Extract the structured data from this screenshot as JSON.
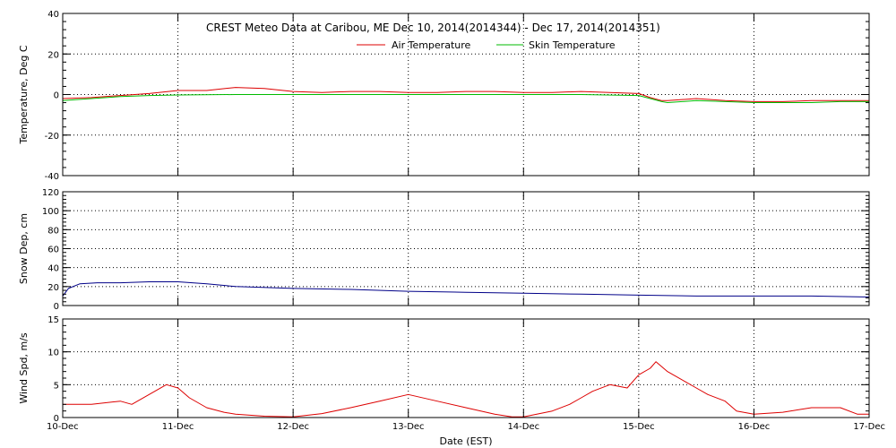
{
  "chart_data": {
    "type": "line",
    "title": "CREST Meteo Data at Caribou, ME   Dec 10, 2014(2014344) - Dec 17, 2014(2014351)",
    "xlabel": "Date (EST)",
    "x_ticks": [
      "10-Dec",
      "11-Dec",
      "12-Dec",
      "13-Dec",
      "14-Dec",
      "15-Dec",
      "16-Dec",
      "17-Dec"
    ],
    "x_range": [
      0,
      7
    ],
    "grid": true,
    "colors": {
      "air": "#dd0000",
      "skin": "#00bb00",
      "snow": "#000088",
      "wind": "#dd0000"
    },
    "panels": [
      {
        "id": "temperature",
        "ylabel": "Temperature, Deg C",
        "ylim": [
          -40,
          40
        ],
        "y_ticks": [
          -40,
          -20,
          0,
          20,
          40
        ],
        "legend_position": "top-center",
        "series": [
          {
            "name": "Air Temperature",
            "color_key": "air",
            "x": [
              0,
              0.25,
              0.5,
              0.75,
              1.0,
              1.25,
              1.5,
              1.75,
              2.0,
              2.25,
              2.5,
              2.75,
              3.0,
              3.25,
              3.5,
              3.75,
              4.0,
              4.25,
              4.5,
              4.75,
              5.0,
              5.1,
              5.2,
              5.25,
              5.5,
              5.75,
              6.0,
              6.25,
              6.5,
              6.75,
              7.0
            ],
            "y": [
              -2,
              -1.5,
              -0.5,
              0.5,
              2,
              2,
              3.5,
              3,
              1.5,
              1,
              1.5,
              1.5,
              1,
              1,
              1.5,
              1.5,
              1,
              1,
              1.5,
              1,
              0.5,
              -1.5,
              -3,
              -3,
              -2,
              -3,
              -3.5,
              -3.5,
              -3,
              -3,
              -3
            ]
          },
          {
            "name": "Skin Temperature",
            "color_key": "skin",
            "x": [
              0,
              0.25,
              0.5,
              0.75,
              1.0,
              1.5,
              2.0,
              2.5,
              3.0,
              3.5,
              4.0,
              4.5,
              5.0,
              5.1,
              5.2,
              5.25,
              5.5,
              5.75,
              6.0,
              6.25,
              6.5,
              6.75,
              7.0
            ],
            "y": [
              -3,
              -2,
              -1,
              -0.5,
              -0.2,
              0,
              0,
              0,
              0,
              0,
              0,
              0,
              -0.5,
              -2,
              -3.5,
              -4,
              -3,
              -3.5,
              -4,
              -4,
              -4,
              -3.5,
              -3.5
            ]
          }
        ]
      },
      {
        "id": "snow",
        "ylabel": "Snow Dep, cm",
        "ylim": [
          0,
          120
        ],
        "y_ticks": [
          0,
          20,
          40,
          60,
          80,
          100,
          120
        ],
        "series": [
          {
            "name": "",
            "color_key": "snow",
            "x": [
              0,
              0.05,
              0.15,
              0.3,
              0.5,
              0.75,
              1.0,
              1.25,
              1.5,
              2.0,
              2.5,
              3.0,
              3.5,
              4.0,
              4.5,
              5.0,
              5.5,
              6.0,
              6.5,
              7.0
            ],
            "y": [
              10,
              18,
              23,
              24,
              24,
              25,
              25,
              23,
              20,
              18,
              17,
              15,
              14,
              13,
              12,
              11,
              10,
              10,
              10,
              9
            ]
          }
        ]
      },
      {
        "id": "wind",
        "ylabel": "Wind Spd, m/s",
        "ylim": [
          0,
          15
        ],
        "y_ticks": [
          0,
          5,
          10,
          15
        ],
        "series": [
          {
            "name": "",
            "color_key": "wind",
            "x": [
              0,
              0.25,
              0.5,
              0.6,
              0.75,
              0.9,
              1.0,
              1.1,
              1.25,
              1.4,
              1.5,
              1.75,
              2.0,
              2.25,
              2.5,
              2.75,
              3.0,
              3.25,
              3.5,
              3.75,
              3.9,
              4.0,
              4.25,
              4.4,
              4.5,
              4.6,
              4.75,
              4.9,
              5.0,
              5.1,
              5.15,
              5.25,
              5.4,
              5.5,
              5.6,
              5.75,
              5.85,
              6.0,
              6.25,
              6.5,
              6.75,
              6.9,
              7.0
            ],
            "y": [
              2,
              2,
              2.5,
              2,
              3.5,
              5,
              4.5,
              3,
              1.5,
              0.8,
              0.5,
              0.2,
              0.1,
              0.6,
              1.5,
              2.5,
              3.5,
              2.5,
              1.5,
              0.5,
              0.1,
              0.1,
              1,
              2,
              3,
              4,
              5,
              4.5,
              6.5,
              7.5,
              8.5,
              7,
              5.5,
              4.5,
              3.5,
              2.5,
              1,
              0.5,
              0.8,
              1.5,
              1.5,
              0.5,
              0.5
            ]
          }
        ]
      }
    ]
  }
}
